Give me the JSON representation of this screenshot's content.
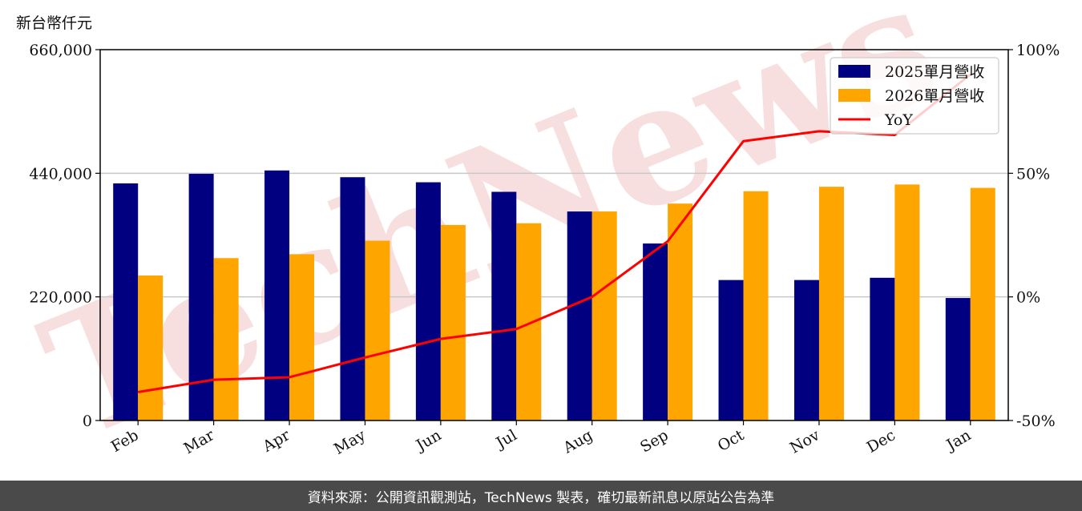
{
  "unit_label": "新台幣仟元",
  "footer_text": "資料來源：公開資訊觀測站，TechNews 製表，確切最新訊息以原站公告為準",
  "watermark_text": "TechNews",
  "colors": {
    "bar_2025": "#000080",
    "bar_2026": "#FFA500",
    "yoy_line": "#FF0000",
    "grid": "#c8c8c8",
    "footer_bg": "#4a4a4a",
    "watermark": "#f2c4c4"
  },
  "chart_data": {
    "type": "bar",
    "categories": [
      "Feb",
      "Mar",
      "Apr",
      "May",
      "Jun",
      "Jul",
      "Aug",
      "Sep",
      "Oct",
      "Nov",
      "Dec",
      "Jan"
    ],
    "series": [
      {
        "name": "2025單月營收",
        "type": "bar",
        "axis": "left",
        "values": [
          422000,
          439000,
          445000,
          433000,
          424000,
          407000,
          372000,
          315000,
          250000,
          250000,
          254000,
          218000
        ]
      },
      {
        "name": "2026單月營收",
        "type": "bar",
        "axis": "left",
        "values": [
          258000,
          289000,
          296000,
          320000,
          348000,
          351000,
          372000,
          386000,
          408000,
          416000,
          420000,
          414000
        ]
      },
      {
        "name": "YoY",
        "type": "line",
        "axis": "right",
        "values": [
          -38.5,
          -33.5,
          -32.5,
          -24.5,
          -17,
          -13,
          0,
          22.5,
          63,
          67,
          65.5,
          90
        ]
      }
    ],
    "ylim_left": [
      0,
      660000
    ],
    "yticks_left": [
      "0",
      "220,000",
      "440,000",
      "660,000"
    ],
    "ylim_right": [
      -50,
      100
    ],
    "yticks_right": [
      "-50%",
      "0%",
      "50%",
      "100%"
    ],
    "grid": true,
    "legend_position": "top-right"
  }
}
